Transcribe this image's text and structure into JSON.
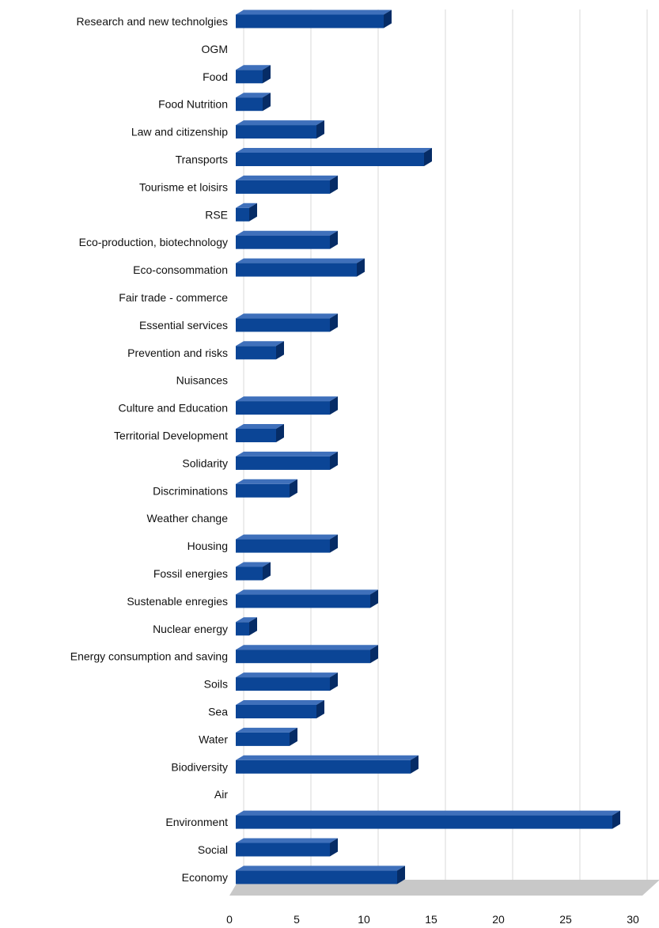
{
  "chart_data": {
    "type": "bar",
    "orientation": "horizontal",
    "style": "3d",
    "categories": [
      "Research and new technolgies",
      "OGM",
      "Food",
      "Food Nutrition",
      "Law and citizenship",
      "Transports",
      "Tourisme et loisirs",
      "RSE",
      "Eco-production, biotechnology",
      "Eco-consommation",
      "Fair trade - commerce",
      "Essential services",
      "Prevention and risks",
      "Nuisances",
      "Culture and Education",
      "Territorial Development",
      "Solidarity",
      "Discriminations",
      "Weather change",
      "Housing",
      "Fossil energies",
      "Sustenable enregies",
      "Nuclear energy",
      "Energy consumption and saving",
      "Soils",
      "Sea",
      "Water",
      "Biodiversity",
      "Air",
      "Environment",
      "Social",
      "Economy"
    ],
    "values": [
      11,
      0,
      2,
      2,
      6,
      14,
      7,
      1,
      7,
      9,
      0,
      7,
      3,
      0,
      7,
      3,
      7,
      4,
      0,
      7,
      2,
      10,
      1,
      10,
      7,
      6,
      4,
      13,
      0,
      28,
      7,
      12
    ],
    "xticks": [
      "0",
      "5",
      "10",
      "15",
      "20",
      "25",
      "30"
    ],
    "xlim": [
      0,
      30
    ],
    "title": "",
    "xlabel": "",
    "ylabel": "",
    "grid": "vertical",
    "legend": "none",
    "colors": {
      "bar_front": "#0b4596",
      "bar_top": "#3f70bb",
      "bar_side": "#062c66",
      "floor": "#c8c8c8",
      "grid": "#d9d9d9"
    }
  }
}
